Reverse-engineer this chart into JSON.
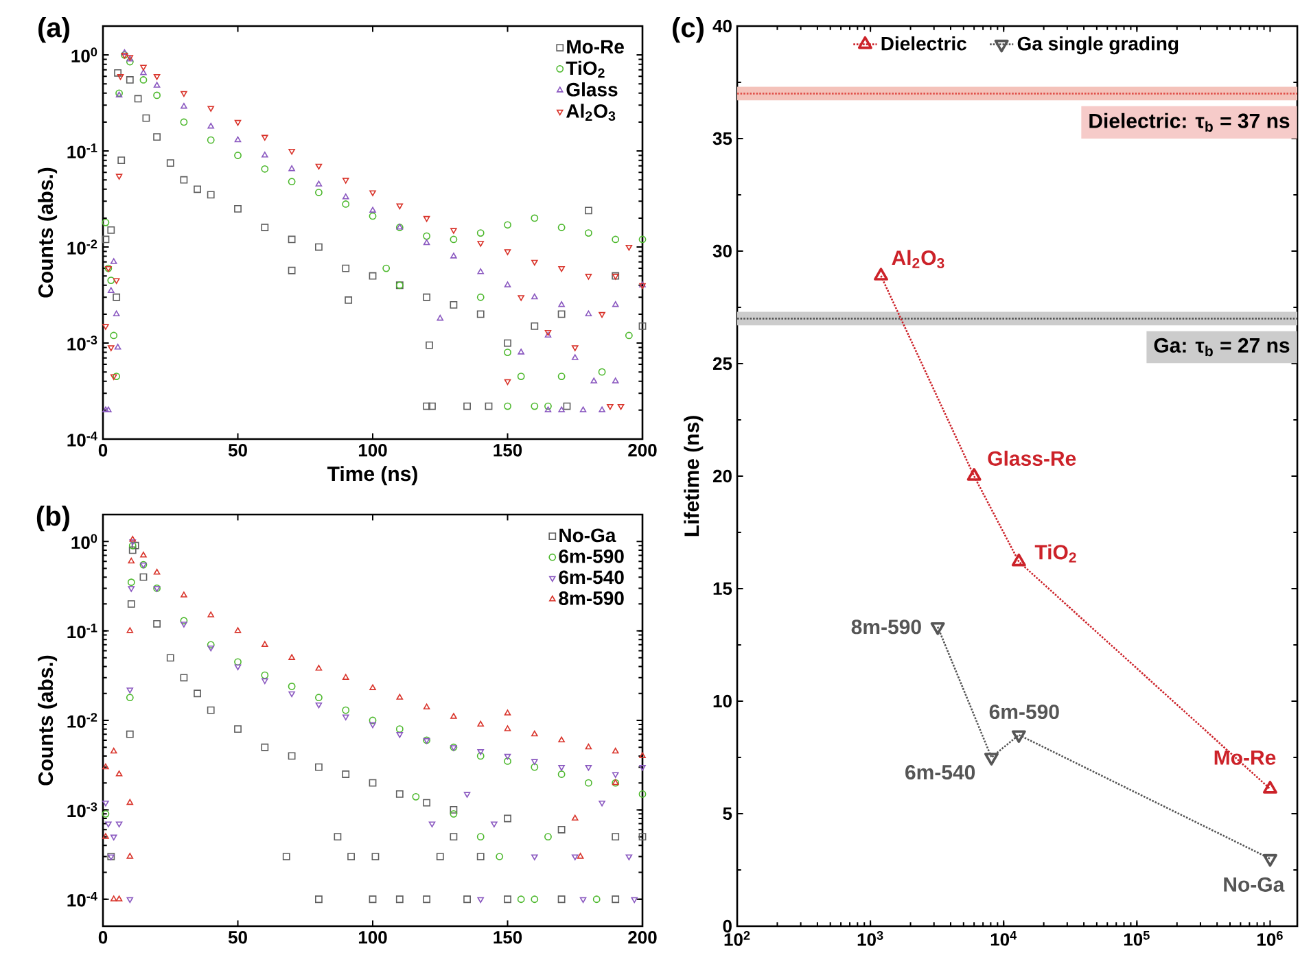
{
  "chart_data": [
    {
      "type": "scatter",
      "xlabel": "Time (ns)",
      "ylabel": "Counts (abs.)",
      "log": "y",
      "legend": "top right",
      "xlim": [
        0,
        200
      ],
      "ylim": [
        0.0001,
        2
      ],
      "xticks": [
        0,
        50,
        100,
        150,
        200
      ],
      "yticks": [
        {
          "value": 0.0001,
          "label": "10$^{-4}$"
        },
        {
          "value": 0.001,
          "label": "10$^{-3}$"
        },
        {
          "value": 0.01,
          "label": "10$^{-2}$"
        },
        {
          "value": 0.1,
          "label": "10$^{-1}$"
        },
        {
          "value": 1,
          "label": "10$^{0}$"
        }
      ],
      "annotations": [
        "(a)"
      ],
      "series": [
        {
          "name": "Mo-Re",
          "color": "#5e5e5e",
          "marker": "square",
          "x": [
            1,
            3,
            5,
            6.8,
            5.5,
            10,
            13,
            16,
            20,
            25,
            30,
            35,
            40,
            50,
            60,
            70,
            70,
            80,
            90,
            91,
            100,
            110,
            120,
            121,
            130,
            140,
            150,
            160,
            170,
            180,
            190,
            200,
            120,
            122,
            135,
            143,
            172
          ],
          "values": [
            0.012,
            0.015,
            0.003,
            0.08,
            0.65,
            0.55,
            0.35,
            0.22,
            0.14,
            0.075,
            0.05,
            0.04,
            0.035,
            0.025,
            0.016,
            0.012,
            0.0057,
            0.01,
            0.006,
            0.0028,
            0.005,
            0.004,
            0.003,
            0.00095,
            0.0025,
            0.002,
            0.001,
            0.0015,
            0.002,
            0.024,
            0.005,
            0.0015,
            0.00022,
            0.00022,
            0.00022,
            0.00022,
            0.00022
          ]
        },
        {
          "name": "TiO$_{2}$",
          "color": "#4cb82c",
          "marker": "circle",
          "x": [
            1,
            2,
            3,
            4,
            5,
            6,
            8,
            10,
            15,
            20,
            30,
            40,
            50,
            60,
            70,
            80,
            90,
            100,
            110,
            120,
            130,
            140,
            150,
            160,
            170,
            180,
            190,
            200,
            105,
            110,
            140,
            150,
            155,
            170,
            185,
            150,
            160,
            165,
            195
          ],
          "values": [
            0.018,
            0.006,
            0.0045,
            0.0012,
            0.00045,
            0.4,
            1.0,
            0.85,
            0.55,
            0.38,
            0.2,
            0.13,
            0.09,
            0.065,
            0.048,
            0.037,
            0.028,
            0.021,
            0.016,
            0.013,
            0.012,
            0.014,
            0.017,
            0.02,
            0.016,
            0.014,
            0.012,
            0.012,
            0.006,
            0.004,
            0.003,
            0.0008,
            0.00045,
            0.00045,
            0.0005,
            0.00022,
            0.00022,
            0.00022,
            0.0012
          ]
        },
        {
          "name": "Glass",
          "color": "#8a58c0",
          "marker": "triangle",
          "x": [
            1,
            2,
            3,
            4,
            5,
            5.5,
            6,
            8,
            10,
            15,
            20,
            30,
            40,
            50,
            60,
            70,
            80,
            90,
            100,
            110,
            120,
            130,
            140,
            150,
            160,
            170,
            180,
            190,
            200,
            125,
            155,
            165,
            175,
            182,
            190,
            165,
            170,
            178,
            185
          ],
          "values": [
            0.0002,
            0.0002,
            0.0035,
            0.007,
            0.002,
            0.0009,
            0.38,
            1.05,
            0.9,
            0.65,
            0.48,
            0.29,
            0.18,
            0.13,
            0.09,
            0.065,
            0.045,
            0.033,
            0.024,
            0.016,
            0.011,
            0.008,
            0.0055,
            0.004,
            0.003,
            0.0025,
            0.002,
            0.0025,
            0.004,
            0.0018,
            0.0008,
            0.0012,
            0.0007,
            0.0004,
            0.0004,
            0.0002,
            0.0002,
            0.0002,
            0.0002
          ]
        },
        {
          "name": "Al$_{2}$O$_{3}$",
          "color": "#d9342b",
          "marker": "triangle-down",
          "x": [
            1,
            2,
            3,
            4,
            5,
            6,
            6.5,
            8,
            10,
            15,
            20,
            30,
            40,
            50,
            60,
            70,
            80,
            90,
            100,
            110,
            120,
            130,
            140,
            150,
            160,
            170,
            180,
            190,
            200,
            150,
            165,
            175,
            188,
            192,
            155,
            185,
            195
          ],
          "values": [
            0.0015,
            0.006,
            0.0009,
            0.00045,
            0.0045,
            0.055,
            0.6,
            1.0,
            0.95,
            0.75,
            0.6,
            0.4,
            0.28,
            0.2,
            0.14,
            0.1,
            0.07,
            0.05,
            0.037,
            0.027,
            0.02,
            0.015,
            0.011,
            0.009,
            0.007,
            0.006,
            0.005,
            0.005,
            0.004,
            0.0004,
            0.0013,
            0.0009,
            0.00022,
            0.00022,
            0.003,
            0.002,
            0.01
          ]
        }
      ]
    },
    {
      "type": "scatter",
      "ylabel": "Counts (abs.)",
      "log": "y",
      "legend": "top right",
      "xlim": [
        0,
        200
      ],
      "ylim": [
        5e-05,
        2
      ],
      "xticks": [
        0,
        50,
        100,
        150,
        200
      ],
      "yticks": [
        {
          "value": 0.0001,
          "label": "10$^{-4}$"
        },
        {
          "value": 0.001,
          "label": "10$^{-3}$"
        },
        {
          "value": 0.01,
          "label": "10$^{-2}$"
        },
        {
          "value": 0.1,
          "label": "10$^{-1}$"
        },
        {
          "value": 1,
          "label": "10$^{0}$"
        }
      ],
      "annotations": [
        "(b)"
      ],
      "series": [
        {
          "name": "No-Ga",
          "color": "#5e5e5e",
          "marker": "square",
          "x": [
            3,
            10,
            10.5,
            11,
            12,
            15,
            20,
            25,
            30,
            35,
            40,
            50,
            60,
            70,
            80,
            90,
            100,
            110,
            120,
            130,
            150,
            170,
            190,
            200,
            68,
            92,
            101,
            125,
            140,
            80,
            100,
            110,
            120,
            135,
            150,
            170,
            190,
            87,
            130
          ],
          "values": [
            0.0003,
            0.007,
            0.2,
            0.8,
            0.9,
            0.4,
            0.12,
            0.05,
            0.03,
            0.02,
            0.013,
            0.008,
            0.005,
            0.004,
            0.003,
            0.0025,
            0.002,
            0.0015,
            0.0012,
            0.001,
            0.0008,
            0.0006,
            0.0005,
            0.0005,
            0.0003,
            0.0003,
            0.0003,
            0.0003,
            0.0003,
            0.0001,
            0.0001,
            0.0001,
            0.0001,
            0.0001,
            0.0001,
            0.0001,
            0.0001,
            0.0005,
            0.0005
          ]
        },
        {
          "name": "6m-590",
          "color": "#4cb82c",
          "marker": "circle",
          "x": [
            1,
            10,
            10.5,
            11,
            15,
            20,
            30,
            40,
            50,
            60,
            70,
            80,
            90,
            100,
            110,
            120,
            130,
            140,
            150,
            160,
            170,
            180,
            190,
            200,
            116,
            130,
            140,
            155,
            160,
            183,
            147,
            165
          ],
          "values": [
            0.0009,
            0.018,
            0.35,
            0.9,
            0.55,
            0.3,
            0.13,
            0.07,
            0.045,
            0.032,
            0.024,
            0.018,
            0.013,
            0.01,
            0.008,
            0.006,
            0.005,
            0.004,
            0.0035,
            0.003,
            0.0025,
            0.002,
            0.002,
            0.0015,
            0.0014,
            0.0009,
            0.0005,
            0.0001,
            0.0001,
            0.0001,
            0.0003,
            0.0005
          ]
        },
        {
          "name": "6m-540",
          "color": "#8a58c0",
          "marker": "triangle-down",
          "x": [
            1,
            2,
            3,
            4,
            6,
            10,
            10,
            10.5,
            11,
            15,
            20,
            30,
            40,
            50,
            60,
            70,
            80,
            90,
            100,
            110,
            120,
            130,
            140,
            150,
            160,
            170,
            180,
            190,
            200,
            122,
            145,
            160,
            175,
            195,
            140,
            178,
            197,
            135,
            185
          ],
          "values": [
            0.0012,
            0.0007,
            0.0003,
            0.0005,
            0.0007,
            0.0001,
            0.022,
            0.3,
            1.0,
            0.55,
            0.3,
            0.12,
            0.065,
            0.04,
            0.028,
            0.02,
            0.015,
            0.011,
            0.009,
            0.007,
            0.006,
            0.005,
            0.0045,
            0.004,
            0.0035,
            0.003,
            0.003,
            0.0025,
            0.003,
            0.0007,
            0.0007,
            0.0003,
            0.0003,
            0.0003,
            0.0001,
            0.0001,
            0.0001,
            0.0015,
            0.0012
          ]
        },
        {
          "name": "8m-590",
          "color": "#d9342b",
          "marker": "triangle",
          "x": [
            1,
            1,
            4,
            6,
            10,
            10,
            4,
            6,
            10,
            10.5,
            11,
            15,
            20,
            30,
            40,
            50,
            60,
            70,
            80,
            90,
            100,
            110,
            120,
            130,
            140,
            150,
            160,
            170,
            180,
            190,
            200,
            150,
            175,
            177,
            190
          ],
          "values": [
            0.0005,
            0.003,
            0.0045,
            0.0025,
            0.0012,
            0.0003,
            0.0001,
            0.0001,
            0.1,
            0.6,
            1.05,
            0.7,
            0.45,
            0.25,
            0.15,
            0.1,
            0.07,
            0.05,
            0.038,
            0.03,
            0.023,
            0.018,
            0.014,
            0.011,
            0.009,
            0.008,
            0.007,
            0.006,
            0.005,
            0.0045,
            0.004,
            0.012,
            0.0008,
            0.0003,
            0.002
          ]
        }
      ]
    },
    {
      "type": "line",
      "ylabel": "Lifetime (ns)",
      "log": "x",
      "legend": "top",
      "line_style": "dotted",
      "xlim": [
        100,
        1600000
      ],
      "ylim": [
        0,
        40
      ],
      "xticks": [
        {
          "value": 100,
          "label": "10$^{2}$"
        },
        {
          "value": 1000,
          "label": "10$^{3}$"
        },
        {
          "value": 10000,
          "label": "10$^{4}$"
        },
        {
          "value": 100000,
          "label": "10$^{5}$"
        },
        {
          "value": 1000000,
          "label": "10$^{6}$"
        }
      ],
      "yticks": [
        0,
        5,
        10,
        15,
        20,
        25,
        30,
        35,
        40
      ],
      "ref_lines": [
        {
          "axis": "y",
          "value": 37,
          "label": "Dielectric: τ$_{b}$ = 37 ns",
          "color": "#e0504a",
          "line_style": "dotted"
        },
        {
          "axis": "y",
          "value": 27,
          "label": "Ga: τ$_{b}$ = 27 ns",
          "color": "#555555",
          "line_style": "dotted"
        }
      ],
      "bands": [
        {
          "axis": "y",
          "from": 36.7,
          "to": 37.3,
          "color": "#f4c2ba"
        },
        {
          "axis": "y",
          "from": 26.7,
          "to": 27.3,
          "color": "#cccccc"
        }
      ],
      "annotations": [
        "(c)",
        {
          "text": "Al$_{2}$O$_{3}$",
          "x": 1200,
          "y": 28.9
        },
        {
          "text": "Glass-Re",
          "x": 6000,
          "y": 20
        },
        {
          "text": "TiO$_{2}$",
          "x": 13000,
          "y": 16.2
        },
        {
          "text": "Mo-Re",
          "x": 1000000,
          "y": 6.1
        },
        {
          "text": "8m-590",
          "x": 3200,
          "y": 13.3
        },
        {
          "text": "6m-540",
          "x": 8100,
          "y": 7.5
        },
        {
          "text": "6m-590",
          "x": 13000,
          "y": 8.5
        },
        {
          "text": "No-Ga",
          "x": 1000000,
          "y": 3
        }
      ],
      "series": [
        {
          "name": "Dielectric",
          "color": "#cc2229",
          "marker": "triangle",
          "x": [
            1200,
            6000,
            13000,
            1000000
          ],
          "values": [
            28.9,
            20,
            16.2,
            6.1
          ]
        },
        {
          "name": "Ga single grading",
          "color": "#555555",
          "marker": "triangle-down",
          "x": [
            3200,
            8100,
            13000,
            1000000
          ],
          "values": [
            13.3,
            7.5,
            8.5,
            3
          ]
        }
      ]
    }
  ]
}
